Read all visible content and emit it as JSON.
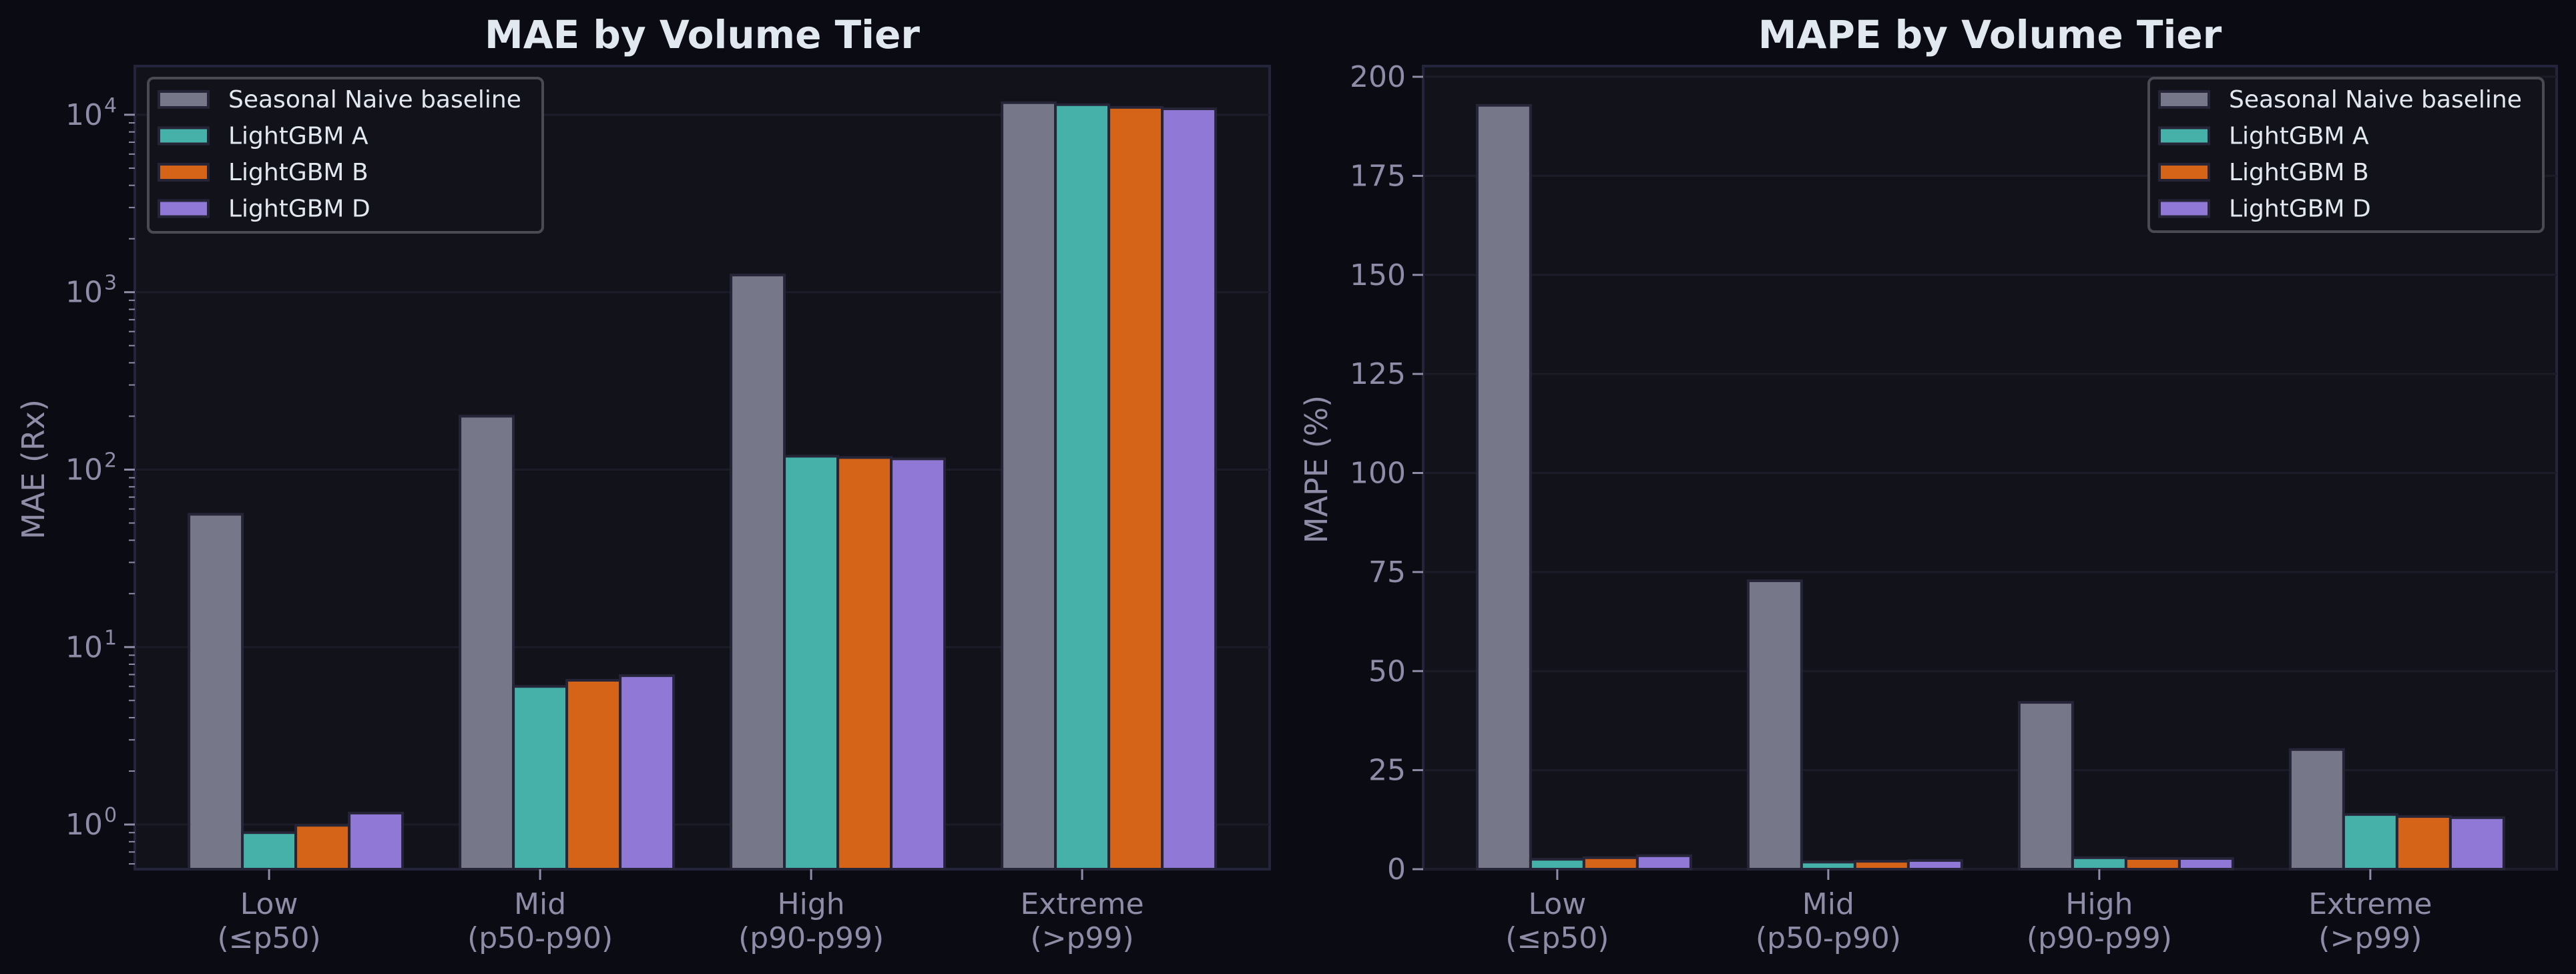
{
  "figure": {
    "background": "#0b0b14",
    "plot_background": "#12121b",
    "spine_color": "#24243a",
    "grid_color": "#1c1c28",
    "text_color": "#e2e8f0",
    "tick_color": "#8e8ca6",
    "legend_border": "#4a4a52"
  },
  "series_styles": [
    {
      "name": "Seasonal Naive baseline",
      "color": "#767789"
    },
    {
      "name": "LightGBM A",
      "color": "#45b1a9"
    },
    {
      "name": "LightGBM B",
      "color": "#d56418"
    },
    {
      "name": "LightGBM D",
      "color": "#9079d6"
    }
  ],
  "chart_data": [
    {
      "type": "bar",
      "title": "MAE by Volume Tier",
      "xlabel": "",
      "ylabel": "MAE (Rx)",
      "yscale": "log",
      "ylim": [
        0.56,
        18800
      ],
      "yticks": [
        1,
        10,
        100,
        1000,
        10000
      ],
      "ytick_labels": [
        {
          "base": "10",
          "exp": "0"
        },
        {
          "base": "10",
          "exp": "1"
        },
        {
          "base": "10",
          "exp": "2"
        },
        {
          "base": "10",
          "exp": "3"
        },
        {
          "base": "10",
          "exp": "4"
        }
      ],
      "grid": true,
      "legend_position": "upper left",
      "categories": [
        [
          "Low",
          "(≤p50)"
        ],
        [
          "Mid",
          "(p50-p90)"
        ],
        [
          "High",
          "(p90-p99)"
        ],
        [
          "Extreme",
          "(>p99)"
        ]
      ],
      "series": [
        {
          "name": "Seasonal Naive baseline",
          "values": [
            56,
            200,
            1250,
            11700
          ]
        },
        {
          "name": "LightGBM A",
          "values": [
            0.9,
            6.0,
            119,
            11400
          ]
        },
        {
          "name": "LightGBM B",
          "values": [
            0.99,
            6.5,
            117,
            11000
          ]
        },
        {
          "name": "LightGBM D",
          "values": [
            1.16,
            6.9,
            115,
            10800
          ]
        }
      ]
    },
    {
      "type": "bar",
      "title": "MAPE by Volume Tier",
      "xlabel": "",
      "ylabel": "MAPE (%)",
      "yscale": "linear",
      "ylim": [
        0,
        202.7
      ],
      "yticks": [
        0,
        25,
        50,
        75,
        100,
        125,
        150,
        175,
        200
      ],
      "grid": true,
      "legend_position": "upper right",
      "categories": [
        [
          "Low",
          "(≤p50)"
        ],
        [
          "Mid",
          "(p50-p90)"
        ],
        [
          "High",
          "(p90-p99)"
        ],
        [
          "Extreme",
          "(>p99)"
        ]
      ],
      "series": [
        {
          "name": "Seasonal Naive baseline",
          "values": [
            192.8,
            72.8,
            42.1,
            30.2
          ]
        },
        {
          "name": "LightGBM A",
          "values": [
            2.5,
            1.8,
            2.9,
            13.8
          ]
        },
        {
          "name": "LightGBM B",
          "values": [
            2.9,
            2.0,
            2.7,
            13.3
          ]
        },
        {
          "name": "LightGBM D",
          "values": [
            3.4,
            2.2,
            2.7,
            13.0
          ]
        }
      ]
    }
  ]
}
